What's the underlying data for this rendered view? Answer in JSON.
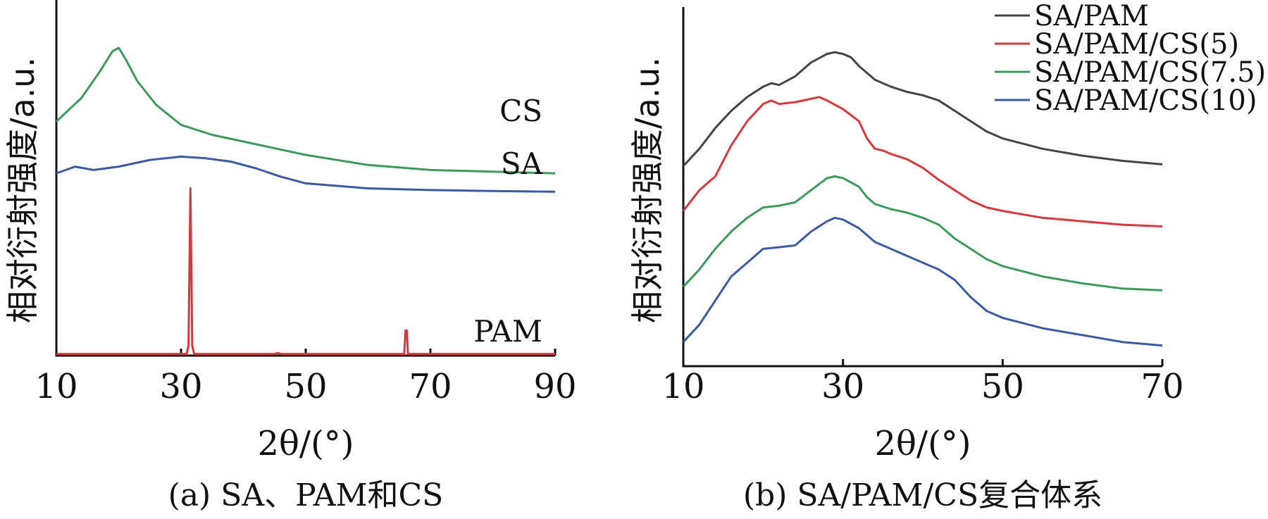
{
  "chart_data": [
    {
      "type": "line",
      "caption": "(a) SA、PAM和CS",
      "xlabel": "2θ/(°)",
      "ylabel": "相对衍射强度/a.u.",
      "xlim": [
        10,
        90
      ],
      "xticks": [
        10,
        30,
        50,
        70,
        90
      ],
      "ylim": [
        0,
        1
      ],
      "series": [
        {
          "name": "CS",
          "color": "#3c9a5a",
          "x": [
            10,
            14,
            17,
            19,
            20,
            21,
            23,
            26,
            30,
            35,
            40,
            50,
            60,
            70,
            80,
            90
          ],
          "y": [
            0.7,
            0.77,
            0.85,
            0.91,
            0.92,
            0.89,
            0.82,
            0.75,
            0.69,
            0.66,
            0.64,
            0.6,
            0.57,
            0.555,
            0.55,
            0.545
          ]
        },
        {
          "name": "SA",
          "color": "#3a5aa6",
          "x": [
            10,
            13,
            16,
            20,
            25,
            30,
            34,
            38,
            42,
            46,
            50,
            60,
            70,
            80,
            90
          ],
          "y": [
            0.545,
            0.565,
            0.555,
            0.565,
            0.585,
            0.595,
            0.59,
            0.58,
            0.56,
            0.535,
            0.515,
            0.5,
            0.495,
            0.492,
            0.49
          ]
        },
        {
          "name": "PAM",
          "color": "#d9373b",
          "x": [
            10,
            30.9,
            31.2,
            31.5,
            31.8,
            32.1,
            45,
            45.5,
            46,
            65.8,
            66.0,
            66.2,
            66.4,
            90
          ],
          "y": [
            0.005,
            0.005,
            0.03,
            0.5,
            0.03,
            0.005,
            0.005,
            0.008,
            0.005,
            0.005,
            0.075,
            0.075,
            0.005,
            0.005
          ]
        }
      ]
    },
    {
      "type": "line",
      "caption": "(b) SA/PAM/CS复合体系",
      "xlabel": "2θ/(°)",
      "ylabel": "相对衍射强度/a.u.",
      "xlim": [
        10,
        70
      ],
      "xticks": [
        10,
        30,
        50,
        70
      ],
      "ylim": [
        0,
        1
      ],
      "legend_position": "top-right",
      "series": [
        {
          "name": "SA/PAM",
          "color": "#444444",
          "x": [
            10,
            12,
            14,
            16,
            18,
            20,
            21,
            22,
            24,
            26,
            28,
            29,
            30,
            31,
            32,
            34,
            36,
            38,
            40,
            42,
            44,
            46,
            48,
            50,
            55,
            60,
            65,
            70
          ],
          "y": [
            0.58,
            0.63,
            0.69,
            0.74,
            0.78,
            0.81,
            0.82,
            0.815,
            0.84,
            0.88,
            0.905,
            0.91,
            0.905,
            0.895,
            0.87,
            0.83,
            0.81,
            0.795,
            0.785,
            0.77,
            0.74,
            0.71,
            0.68,
            0.66,
            0.63,
            0.61,
            0.595,
            0.585
          ]
        },
        {
          "name": "SA/PAM/CS(5)",
          "color": "#d9373b",
          "x": [
            10,
            12,
            14,
            16,
            18,
            20,
            21,
            22,
            24,
            26,
            27,
            28,
            30,
            32,
            33,
            34,
            35,
            36,
            38,
            40,
            42,
            44,
            46,
            48,
            50,
            55,
            60,
            65,
            70
          ],
          "y": [
            0.45,
            0.51,
            0.55,
            0.64,
            0.71,
            0.76,
            0.77,
            0.76,
            0.765,
            0.775,
            0.78,
            0.77,
            0.745,
            0.71,
            0.66,
            0.63,
            0.625,
            0.615,
            0.6,
            0.575,
            0.54,
            0.51,
            0.48,
            0.46,
            0.45,
            0.43,
            0.42,
            0.41,
            0.405
          ]
        },
        {
          "name": "SA/PAM/CS(7.5)",
          "color": "#3c9a5a",
          "x": [
            10,
            12,
            14,
            16,
            18,
            20,
            22,
            24,
            26,
            28,
            29,
            30,
            32,
            33,
            34,
            36,
            38,
            40,
            42,
            44,
            46,
            48,
            50,
            55,
            60,
            65,
            70
          ],
          "y": [
            0.23,
            0.28,
            0.34,
            0.39,
            0.43,
            0.46,
            0.465,
            0.475,
            0.51,
            0.545,
            0.55,
            0.545,
            0.52,
            0.49,
            0.47,
            0.455,
            0.445,
            0.43,
            0.41,
            0.37,
            0.34,
            0.31,
            0.29,
            0.26,
            0.24,
            0.225,
            0.22
          ]
        },
        {
          "name": "SA/PAM/CS(10)",
          "color": "#3a5aa6",
          "x": [
            10,
            12,
            14,
            16,
            18,
            20,
            22,
            24,
            26,
            28,
            29,
            30,
            32,
            34,
            36,
            38,
            40,
            42,
            44,
            46,
            48,
            50,
            55,
            60,
            65,
            70
          ],
          "y": [
            0.07,
            0.12,
            0.19,
            0.26,
            0.3,
            0.34,
            0.345,
            0.35,
            0.39,
            0.42,
            0.43,
            0.425,
            0.4,
            0.36,
            0.34,
            0.32,
            0.3,
            0.28,
            0.25,
            0.2,
            0.16,
            0.14,
            0.11,
            0.09,
            0.07,
            0.06
          ]
        }
      ]
    }
  ]
}
